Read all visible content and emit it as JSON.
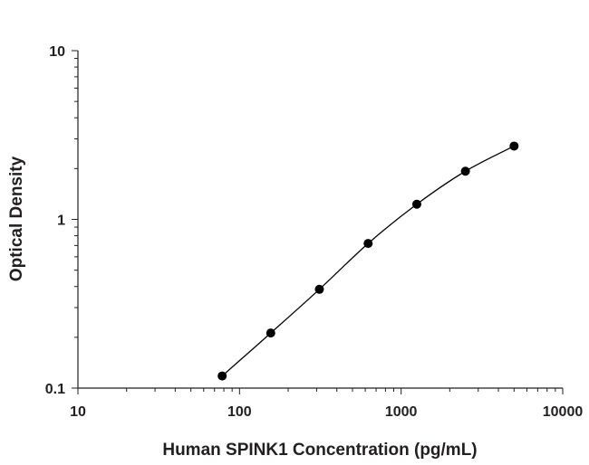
{
  "chart_data": {
    "type": "line",
    "title": "",
    "xlabel": "Human SPINK1 Concentration (pg/mL)",
    "ylabel": "Optical Density",
    "x_scale": "log",
    "y_scale": "log",
    "xlim": [
      10,
      10000
    ],
    "ylim": [
      0.1,
      10
    ],
    "x_ticks": [
      "10",
      "100",
      "1000",
      "10000"
    ],
    "y_ticks": [
      "0.1",
      "1",
      "10"
    ],
    "grid": false,
    "legend": "none",
    "series": [
      {
        "x": [
          78.1,
          156,
          312,
          625,
          1250,
          2500,
          5000
        ],
        "y": [
          0.118,
          0.212,
          0.385,
          0.72,
          1.23,
          1.93,
          2.72
        ]
      }
    ],
    "colors": {
      "line": "#000000",
      "marker": "#000000",
      "axis": "#231f20"
    }
  }
}
